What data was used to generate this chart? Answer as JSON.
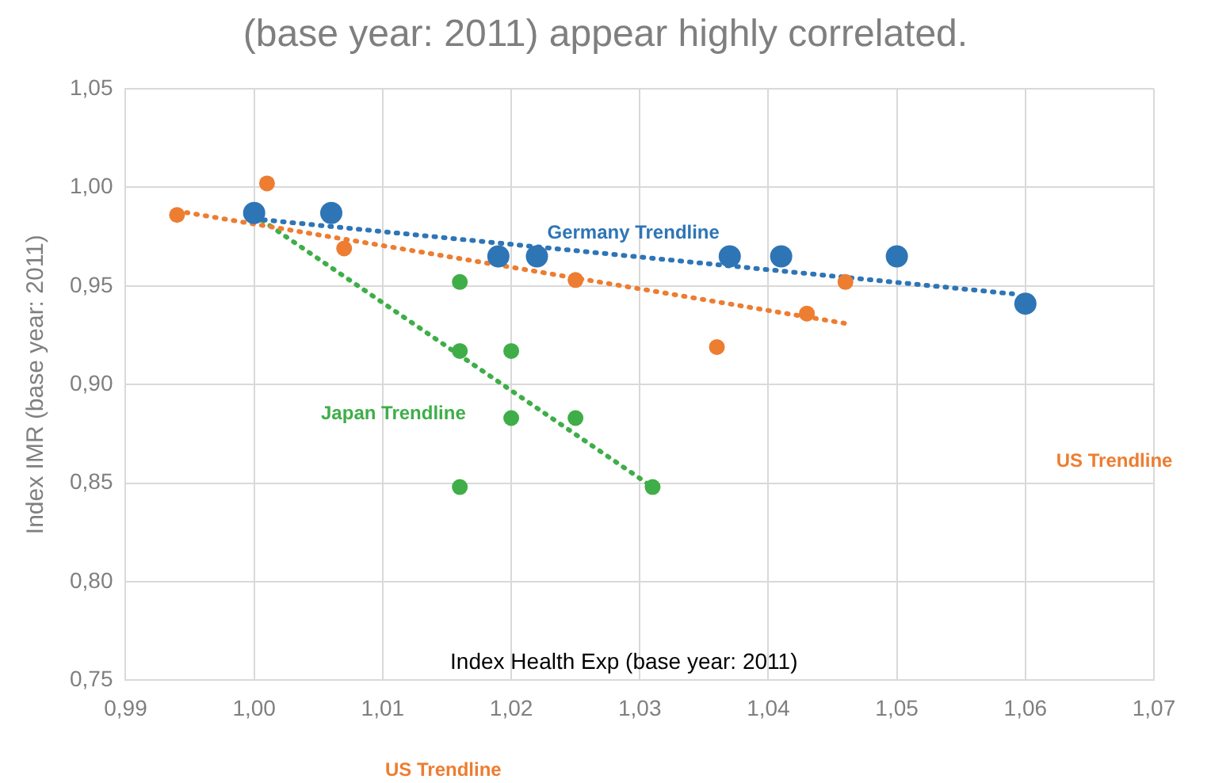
{
  "chart_data": {
    "type": "scatter",
    "title": "(base year: 2011) appear highly correlated.",
    "xlabel": "Index Health Exp (base year: 2011)",
    "ylabel": "Index IMR (base year: 2011)",
    "xlim": [
      0.99,
      1.07
    ],
    "ylim": [
      0.75,
      1.05
    ],
    "xticks": [
      {
        "value": 0.99,
        "label": "0,99"
      },
      {
        "value": 1.0,
        "label": "1,00"
      },
      {
        "value": 1.01,
        "label": "1,01"
      },
      {
        "value": 1.02,
        "label": "1,02"
      },
      {
        "value": 1.03,
        "label": "1,03"
      },
      {
        "value": 1.04,
        "label": "1,04"
      },
      {
        "value": 1.05,
        "label": "1,05"
      },
      {
        "value": 1.06,
        "label": "1,06"
      },
      {
        "value": 1.07,
        "label": "1,07"
      }
    ],
    "yticks": [
      {
        "value": 0.75,
        "label": "0,75"
      },
      {
        "value": 0.8,
        "label": "0,80"
      },
      {
        "value": 0.85,
        "label": "0,85"
      },
      {
        "value": 0.9,
        "label": "0,90"
      },
      {
        "value": 0.95,
        "label": "0,95"
      },
      {
        "value": 1.0,
        "label": "1,00"
      },
      {
        "value": 1.05,
        "label": "1,05"
      }
    ],
    "grid": true,
    "marker": "circle",
    "series": [
      {
        "color": "#2e75b6",
        "x": [
          1.0,
          1.006,
          1.019,
          1.022,
          1.037,
          1.041,
          1.05,
          1.06
        ],
        "values": [
          0.987,
          0.987,
          0.965,
          0.965,
          0.965,
          0.965,
          0.965,
          0.941
        ]
      },
      {
        "color": "#ed7d31",
        "x": [
          0.994,
          1.001,
          1.007,
          1.025,
          1.036,
          1.043,
          1.046
        ],
        "values": [
          0.986,
          1.002,
          0.969,
          0.953,
          0.919,
          0.936,
          0.952
        ]
      },
      {
        "color": "#3fae49",
        "x": [
          1.016,
          1.016,
          1.02,
          1.02,
          1.025,
          1.016,
          1.031
        ],
        "values": [
          0.952,
          0.917,
          0.917,
          0.883,
          0.883,
          0.848,
          0.848
        ]
      },
      {
        "type": "line",
        "name": "Germany Trendline",
        "color": "#2e75b6",
        "line_style": "dotted",
        "marker": "none",
        "x": [
          1.0,
          1.059
        ],
        "values": [
          0.984,
          0.946
        ]
      },
      {
        "type": "line",
        "name": "US Trendline",
        "color": "#ed7d31",
        "line_style": "dotted",
        "marker": "none",
        "x": [
          0.994,
          1.046
        ],
        "values": [
          0.988,
          0.931
        ]
      },
      {
        "type": "line",
        "name": "Japan Trendline",
        "color": "#3fae49",
        "line_style": "dotted",
        "marker": "none",
        "x": [
          1.0,
          1.031
        ],
        "values": [
          0.986,
          0.848
        ]
      }
    ],
    "annotations": [
      "US Trendline"
    ]
  }
}
